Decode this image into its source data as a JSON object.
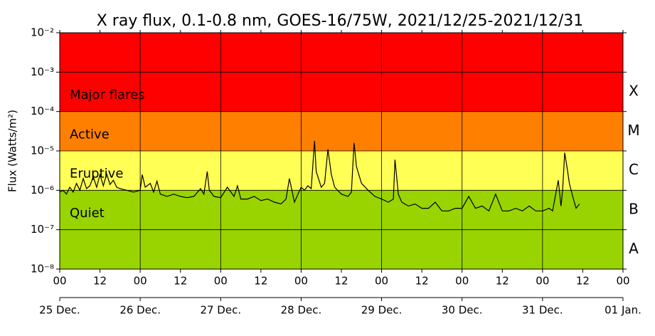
{
  "chart_data": {
    "type": "line",
    "title": "X ray flux, 0.1-0.8 nm, GOES-16/75W, 2021/12/25-2021/12/31",
    "ylabel": "Flux (Watts/m²)",
    "log_y": true,
    "grid": true,
    "ylim": [
      1e-08,
      0.01
    ],
    "yticks": [
      {
        "value": 1e-08,
        "label": "10⁻⁸"
      },
      {
        "value": 1e-07,
        "label": "10⁻⁷"
      },
      {
        "value": 1e-06,
        "label": "10⁻⁶"
      },
      {
        "value": 1e-05,
        "label": "10⁻⁵"
      },
      {
        "value": 0.0001,
        "label": "10⁻⁴"
      },
      {
        "value": 0.001,
        "label": "10⁻³"
      },
      {
        "value": 0.01,
        "label": "10⁻²"
      }
    ],
    "xlim": [
      0,
      168
    ],
    "xticks": [
      {
        "value": 0,
        "label": "00"
      },
      {
        "value": 12,
        "label": "12"
      },
      {
        "value": 24,
        "label": "00"
      },
      {
        "value": 36,
        "label": "12"
      },
      {
        "value": 48,
        "label": "00"
      },
      {
        "value": 60,
        "label": "12"
      },
      {
        "value": 72,
        "label": "00"
      },
      {
        "value": 84,
        "label": "12"
      },
      {
        "value": 96,
        "label": "00"
      },
      {
        "value": 108,
        "label": "12"
      },
      {
        "value": 120,
        "label": "00"
      },
      {
        "value": 132,
        "label": "12"
      },
      {
        "value": 144,
        "label": "00"
      },
      {
        "value": 156,
        "label": "12"
      },
      {
        "value": 168,
        "label": "00"
      }
    ],
    "day_ticks": [
      {
        "value": 0,
        "label": "25 Dec."
      },
      {
        "value": 24,
        "label": "26 Dec."
      },
      {
        "value": 48,
        "label": "27 Dec."
      },
      {
        "value": 72,
        "label": "28 Dec."
      },
      {
        "value": 96,
        "label": "29 Dec."
      },
      {
        "value": 120,
        "label": "30 Dec."
      },
      {
        "value": 144,
        "label": "31 Dec."
      },
      {
        "value": 168,
        "label": "01 Jan."
      }
    ],
    "bands": [
      {
        "label": "Major flares",
        "range": [
          0.0001,
          0.01
        ],
        "color": "#ff0000"
      },
      {
        "label": "Active",
        "range": [
          1e-05,
          0.0001
        ],
        "color": "#ff7f00"
      },
      {
        "label": "Eruptive",
        "range": [
          1e-06,
          1e-05
        ],
        "color": "#ffff55"
      },
      {
        "label": "Quiet",
        "range": [
          1e-08,
          1e-06
        ],
        "color": "#99d400"
      }
    ],
    "classes": [
      {
        "label": "X",
        "range": [
          0.0001,
          0.001
        ]
      },
      {
        "label": "M",
        "range": [
          1e-05,
          0.0001
        ]
      },
      {
        "label": "C",
        "range": [
          1e-06,
          1e-05
        ]
      },
      {
        "label": "B",
        "range": [
          1e-07,
          1e-06
        ]
      },
      {
        "label": "A",
        "range": [
          1e-08,
          1e-07
        ]
      }
    ],
    "series": [
      {
        "color": "#000000",
        "x": [
          0,
          1,
          2,
          3,
          4,
          5,
          6,
          7,
          8,
          9,
          10,
          11,
          12,
          13,
          14,
          15,
          16,
          17,
          18,
          20,
          22,
          24,
          24.6,
          25.5,
          27,
          28,
          29,
          30,
          32,
          34,
          36,
          38,
          40,
          42,
          43,
          44,
          44.6,
          46,
          48,
          50,
          52,
          53,
          54,
          56,
          58,
          60,
          62,
          64,
          66,
          67.5,
          68.5,
          70,
          72,
          73,
          74,
          75,
          76,
          76.5,
          78,
          79,
          80,
          81,
          82,
          84,
          86,
          87,
          87.8,
          88.5,
          90,
          92,
          94,
          96,
          98,
          99.5,
          100,
          101,
          102,
          104,
          106,
          108,
          110,
          112,
          114,
          116,
          118,
          120,
          122,
          124,
          126,
          128,
          130,
          132,
          134,
          136,
          138,
          140,
          142,
          144,
          146,
          147,
          148.7,
          149.5,
          150,
          150.6,
          151.5,
          152,
          153,
          154,
          155
        ],
        "values": [
          9e-07,
          1e-06,
          8e-07,
          1.2e-06,
          9e-07,
          1.5e-06,
          1e-06,
          2e-06,
          1.1e-06,
          1.3e-06,
          2.2e-06,
          1.2e-06,
          2.5e-06,
          1.3e-06,
          2.6e-06,
          1.4e-06,
          1.8e-06,
          1.2e-06,
          1.1e-06,
          1e-06,
          9e-07,
          1e-06,
          2.5e-06,
          1.2e-06,
          1.5e-06,
          9e-07,
          1.7e-06,
          8e-07,
          7e-07,
          8e-07,
          7e-07,
          6.5e-07,
          7e-07,
          1.1e-06,
          8e-07,
          3e-06,
          1e-06,
          7e-07,
          6.5e-07,
          1.2e-06,
          7e-07,
          1.3e-06,
          6e-07,
          6e-07,
          7e-07,
          5.5e-07,
          6e-07,
          5e-07,
          4.5e-07,
          6e-07,
          2e-06,
          5e-07,
          1.2e-06,
          1e-06,
          1.3e-06,
          1.1e-06,
          1.8e-05,
          3e-06,
          1.2e-06,
          1.5e-06,
          1.1e-05,
          2.5e-06,
          1.2e-06,
          8e-07,
          7e-07,
          9e-07,
          1.6e-05,
          4e-06,
          1.5e-06,
          1e-06,
          7e-07,
          6e-07,
          5e-07,
          6e-07,
          6e-06,
          8e-07,
          5e-07,
          4e-07,
          4.5e-07,
          3.5e-07,
          3.5e-07,
          5e-07,
          3e-07,
          3e-07,
          3.5e-07,
          3.5e-07,
          7e-07,
          3.5e-07,
          4e-07,
          3e-07,
          8e-07,
          3e-07,
          3e-07,
          3.5e-07,
          3e-07,
          4e-07,
          3e-07,
          3e-07,
          3.5e-07,
          3e-07,
          1.8e-06,
          4e-07,
          1e-06,
          9e-06,
          3e-06,
          1.5e-06,
          7e-07,
          3.5e-07,
          4.5e-07
        ]
      }
    ]
  }
}
